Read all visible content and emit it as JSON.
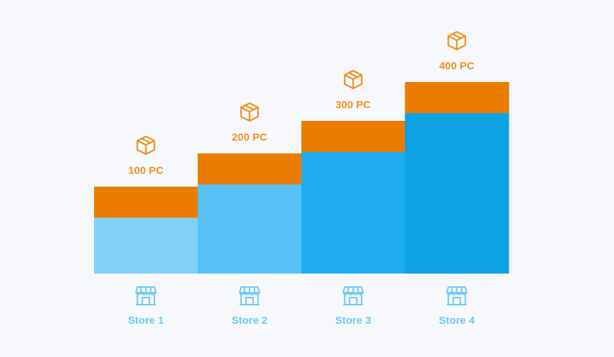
{
  "chart_data": {
    "type": "bar",
    "categories": [
      "Store 1",
      "Store 2",
      "Store 3",
      "Store 4"
    ],
    "values": [
      100,
      200,
      300,
      400
    ],
    "value_labels": [
      "100 PC",
      "200 PC",
      "300 PC",
      "400 PC"
    ],
    "title": "",
    "xlabel": "",
    "ylabel": "",
    "ylim": [
      0,
      400
    ],
    "grid": false,
    "legend": "none",
    "colors": {
      "bars": [
        "#81d1f7",
        "#56c2f6",
        "#1eacf2",
        "#0ea1e4"
      ],
      "cap": "#ea7c00",
      "value_label": "#f29221",
      "category_label": "#6ec9f3",
      "store_icon": "#6ec9f3",
      "box_icon": "#f29221"
    },
    "icons": {
      "value": "box-icon",
      "category": "store-icon"
    }
  }
}
